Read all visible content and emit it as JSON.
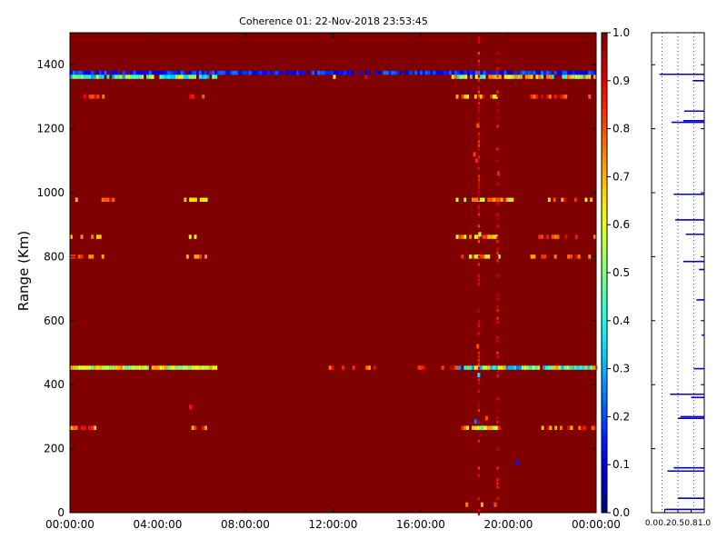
{
  "chart_data": {
    "type": "heatmap",
    "title": "Coherence 01: 22-Nov-2018 23:53:45",
    "ylabel": "Range (Km)",
    "xlabel": "",
    "x_ticks": [
      "00:00:00",
      "04:00:00",
      "08:00:00",
      "12:00:00",
      "16:00:00",
      "20:00:00",
      "00:00:00"
    ],
    "x_range_hours": [
      0,
      24
    ],
    "y_ticks": [
      0,
      200,
      400,
      600,
      800,
      1000,
      1200,
      1400
    ],
    "y_range_km": [
      0,
      1500
    ],
    "colorscale": "jet",
    "background_value": 1.0,
    "colorbar": {
      "ticks": [
        "0.0",
        "0.1",
        "0.2",
        "0.3",
        "0.4",
        "0.5",
        "0.6",
        "0.7",
        "0.8",
        "0.9",
        "1.0"
      ],
      "range": [
        0,
        1
      ]
    },
    "features": [
      {
        "kind": "band",
        "range_km": 1375,
        "value_low": 0.06,
        "value_high": 0.25,
        "x_start_h": 0,
        "x_end_h": 24,
        "coverage": 0.85
      },
      {
        "kind": "band",
        "range_km": 1362,
        "value_low": 0.28,
        "value_high": 0.6,
        "x_start_h": 0,
        "x_end_h": 6.7,
        "coverage": 0.9
      },
      {
        "kind": "band",
        "range_km": 1362,
        "value_low": 0.35,
        "value_high": 0.8,
        "x_start_h": 17.4,
        "x_end_h": 24,
        "coverage": 0.75
      },
      {
        "kind": "band",
        "range_km": 1362,
        "value_low": 0.5,
        "value_high": 0.9,
        "x_start_h": 12,
        "x_end_h": 17,
        "coverage": 0.12
      },
      {
        "kind": "band",
        "range_km": 453,
        "value_low": 0.45,
        "value_high": 0.75,
        "x_start_h": 0,
        "x_end_h": 6.7,
        "coverage": 0.95
      },
      {
        "kind": "band",
        "range_km": 453,
        "value_low": 0.25,
        "value_high": 0.75,
        "x_start_h": 17.6,
        "x_end_h": 24,
        "coverage": 0.9
      },
      {
        "kind": "band",
        "range_km": 453,
        "value_low": 0.7,
        "value_high": 0.92,
        "x_start_h": 11.8,
        "x_end_h": 14.0,
        "coverage": 0.35
      },
      {
        "kind": "band",
        "range_km": 453,
        "value_low": 0.8,
        "value_high": 0.95,
        "x_start_h": 15.5,
        "x_end_h": 17.6,
        "coverage": 0.25
      },
      {
        "kind": "band",
        "range_km": 978,
        "value_low": 0.6,
        "value_high": 0.92,
        "x_start_h": 0,
        "x_end_h": 2.0,
        "coverage": 0.5
      },
      {
        "kind": "band",
        "range_km": 978,
        "value_low": 0.6,
        "value_high": 0.7,
        "x_start_h": 5.2,
        "x_end_h": 6.2,
        "coverage": 0.9
      },
      {
        "kind": "band",
        "range_km": 978,
        "value_low": 0.5,
        "value_high": 0.95,
        "x_start_h": 17.6,
        "x_end_h": 20.3,
        "coverage": 0.8
      },
      {
        "kind": "band",
        "range_km": 978,
        "value_low": 0.6,
        "value_high": 0.95,
        "x_start_h": 21.8,
        "x_end_h": 24,
        "coverage": 0.5
      },
      {
        "kind": "band",
        "range_km": 862,
        "value_low": 0.55,
        "value_high": 0.9,
        "x_start_h": 0,
        "x_end_h": 1.5,
        "coverage": 0.5
      },
      {
        "kind": "band",
        "range_km": 862,
        "value_low": 0.6,
        "value_high": 0.9,
        "x_start_h": 5.3,
        "x_end_h": 6.2,
        "coverage": 0.5
      },
      {
        "kind": "band",
        "range_km": 862,
        "value_low": 0.55,
        "value_high": 0.85,
        "x_start_h": 17.6,
        "x_end_h": 19.5,
        "coverage": 0.6
      },
      {
        "kind": "band",
        "range_km": 862,
        "value_low": 0.7,
        "value_high": 0.9,
        "x_start_h": 21.0,
        "x_end_h": 24,
        "coverage": 0.35
      },
      {
        "kind": "band",
        "range_km": 800,
        "value_low": 0.6,
        "value_high": 0.9,
        "x_start_h": 0,
        "x_end_h": 1.5,
        "coverage": 0.5
      },
      {
        "kind": "band",
        "range_km": 800,
        "value_low": 0.6,
        "value_high": 0.85,
        "x_start_h": 5.3,
        "x_end_h": 6.2,
        "coverage": 0.6
      },
      {
        "kind": "band",
        "range_km": 800,
        "value_low": 0.55,
        "value_high": 0.85,
        "x_start_h": 17.6,
        "x_end_h": 19.6,
        "coverage": 0.65
      },
      {
        "kind": "band",
        "range_km": 800,
        "value_low": 0.7,
        "value_high": 0.9,
        "x_start_h": 21.0,
        "x_end_h": 24,
        "coverage": 0.4
      },
      {
        "kind": "band",
        "range_km": 1300,
        "value_low": 0.65,
        "value_high": 0.9,
        "x_start_h": 0.5,
        "x_end_h": 1.5,
        "coverage": 0.5
      },
      {
        "kind": "band",
        "range_km": 1300,
        "value_low": 0.7,
        "value_high": 0.9,
        "x_start_h": 5.3,
        "x_end_h": 6.2,
        "coverage": 0.5
      },
      {
        "kind": "band",
        "range_km": 1300,
        "value_low": 0.6,
        "value_high": 0.9,
        "x_start_h": 17.6,
        "x_end_h": 19.6,
        "coverage": 0.75
      },
      {
        "kind": "band",
        "range_km": 1300,
        "value_low": 0.75,
        "value_high": 0.9,
        "x_start_h": 21.0,
        "x_end_h": 24,
        "coverage": 0.3
      },
      {
        "kind": "band",
        "range_km": 265,
        "value_low": 0.65,
        "value_high": 0.9,
        "x_start_h": 0,
        "x_end_h": 1.5,
        "coverage": 0.5
      },
      {
        "kind": "band",
        "range_km": 265,
        "value_low": 0.65,
        "value_high": 0.85,
        "x_start_h": 5.3,
        "x_end_h": 6.2,
        "coverage": 0.6
      },
      {
        "kind": "band",
        "range_km": 265,
        "value_low": 0.5,
        "value_high": 0.85,
        "x_start_h": 17.6,
        "x_end_h": 19.6,
        "coverage": 0.8
      },
      {
        "kind": "band",
        "range_km": 265,
        "value_low": 0.65,
        "value_high": 0.9,
        "x_start_h": 21.5,
        "x_end_h": 24,
        "coverage": 0.5
      },
      {
        "kind": "column",
        "x_h": 18.65,
        "value_low": 0.8,
        "value_high": 0.95,
        "coverage": 0.5
      },
      {
        "kind": "column",
        "x_h": 19.5,
        "value_low": 0.82,
        "value_high": 0.95,
        "coverage": 0.35
      },
      {
        "kind": "point",
        "x_h": 18.45,
        "range_km": 1120,
        "value": 0.82
      },
      {
        "kind": "point",
        "x_h": 18.55,
        "range_km": 1100,
        "value": 0.85
      },
      {
        "kind": "point",
        "x_h": 18.6,
        "range_km": 1210,
        "value": 0.8
      },
      {
        "kind": "point",
        "x_h": 19.55,
        "range_km": 1060,
        "value": 0.85
      },
      {
        "kind": "point",
        "x_h": 18.7,
        "range_km": 870,
        "value": 0.55
      },
      {
        "kind": "point",
        "x_h": 18.6,
        "range_km": 520,
        "value": 0.8
      },
      {
        "kind": "point",
        "x_h": 18.5,
        "range_km": 285,
        "value": 0.25
      },
      {
        "kind": "point",
        "x_h": 18.65,
        "range_km": 430,
        "value": 0.35
      },
      {
        "kind": "point",
        "x_h": 18.8,
        "range_km": 265,
        "value": 0.4
      },
      {
        "kind": "point",
        "x_h": 5.5,
        "range_km": 330,
        "value": 0.85
      },
      {
        "kind": "point",
        "x_h": 20.4,
        "range_km": 155,
        "value": 0.15
      },
      {
        "kind": "point",
        "x_h": 18.8,
        "range_km": 25,
        "value": 0.7
      },
      {
        "kind": "point",
        "x_h": 18.1,
        "range_km": 25,
        "value": 0.75
      },
      {
        "kind": "point",
        "x_h": 19.4,
        "range_km": 25,
        "value": 0.8
      },
      {
        "kind": "point",
        "x_h": 19.0,
        "range_km": 295,
        "value": 0.8
      }
    ],
    "side_panel": {
      "type": "profile",
      "x_ticks": [
        "0.0",
        "0.2",
        "0.5",
        "0.8",
        "1.0"
      ],
      "x_range": [
        0,
        1
      ],
      "y_range_km": [
        0,
        1500
      ],
      "grid": "vertical-dotted",
      "segments": [
        {
          "y": 1370,
          "x_start": 0.15,
          "x_end": 1.0
        },
        {
          "y": 1350,
          "x_start": 0.78,
          "x_end": 1.0
        },
        {
          "y": 1255,
          "x_start": 0.62,
          "x_end": 1.0
        },
        {
          "y": 1225,
          "x_start": 0.6,
          "x_end": 1.0
        },
        {
          "y": 1220,
          "x_start": 0.38,
          "x_end": 1.0
        },
        {
          "y": 995,
          "x_start": 0.42,
          "x_end": 1.0
        },
        {
          "y": 915,
          "x_start": 0.45,
          "x_end": 1.0
        },
        {
          "y": 870,
          "x_start": 0.65,
          "x_end": 1.0
        },
        {
          "y": 785,
          "x_start": 0.6,
          "x_end": 1.0
        },
        {
          "y": 760,
          "x_start": 0.9,
          "x_end": 1.0
        },
        {
          "y": 665,
          "x_start": 0.85,
          "x_end": 1.0
        },
        {
          "y": 555,
          "x_start": 0.95,
          "x_end": 1.0
        },
        {
          "y": 450,
          "x_start": 0.8,
          "x_end": 1.0
        },
        {
          "y": 370,
          "x_start": 0.35,
          "x_end": 1.0
        },
        {
          "y": 360,
          "x_start": 0.75,
          "x_end": 1.0
        },
        {
          "y": 300,
          "x_start": 0.55,
          "x_end": 1.0
        },
        {
          "y": 295,
          "x_start": 0.5,
          "x_end": 1.0
        },
        {
          "y": 140,
          "x_start": 0.42,
          "x_end": 1.0
        },
        {
          "y": 130,
          "x_start": 0.3,
          "x_end": 1.0
        },
        {
          "y": 45,
          "x_start": 0.5,
          "x_end": 1.0
        },
        {
          "y": 10,
          "x_start": 0.25,
          "x_end": 1.0
        }
      ]
    }
  }
}
